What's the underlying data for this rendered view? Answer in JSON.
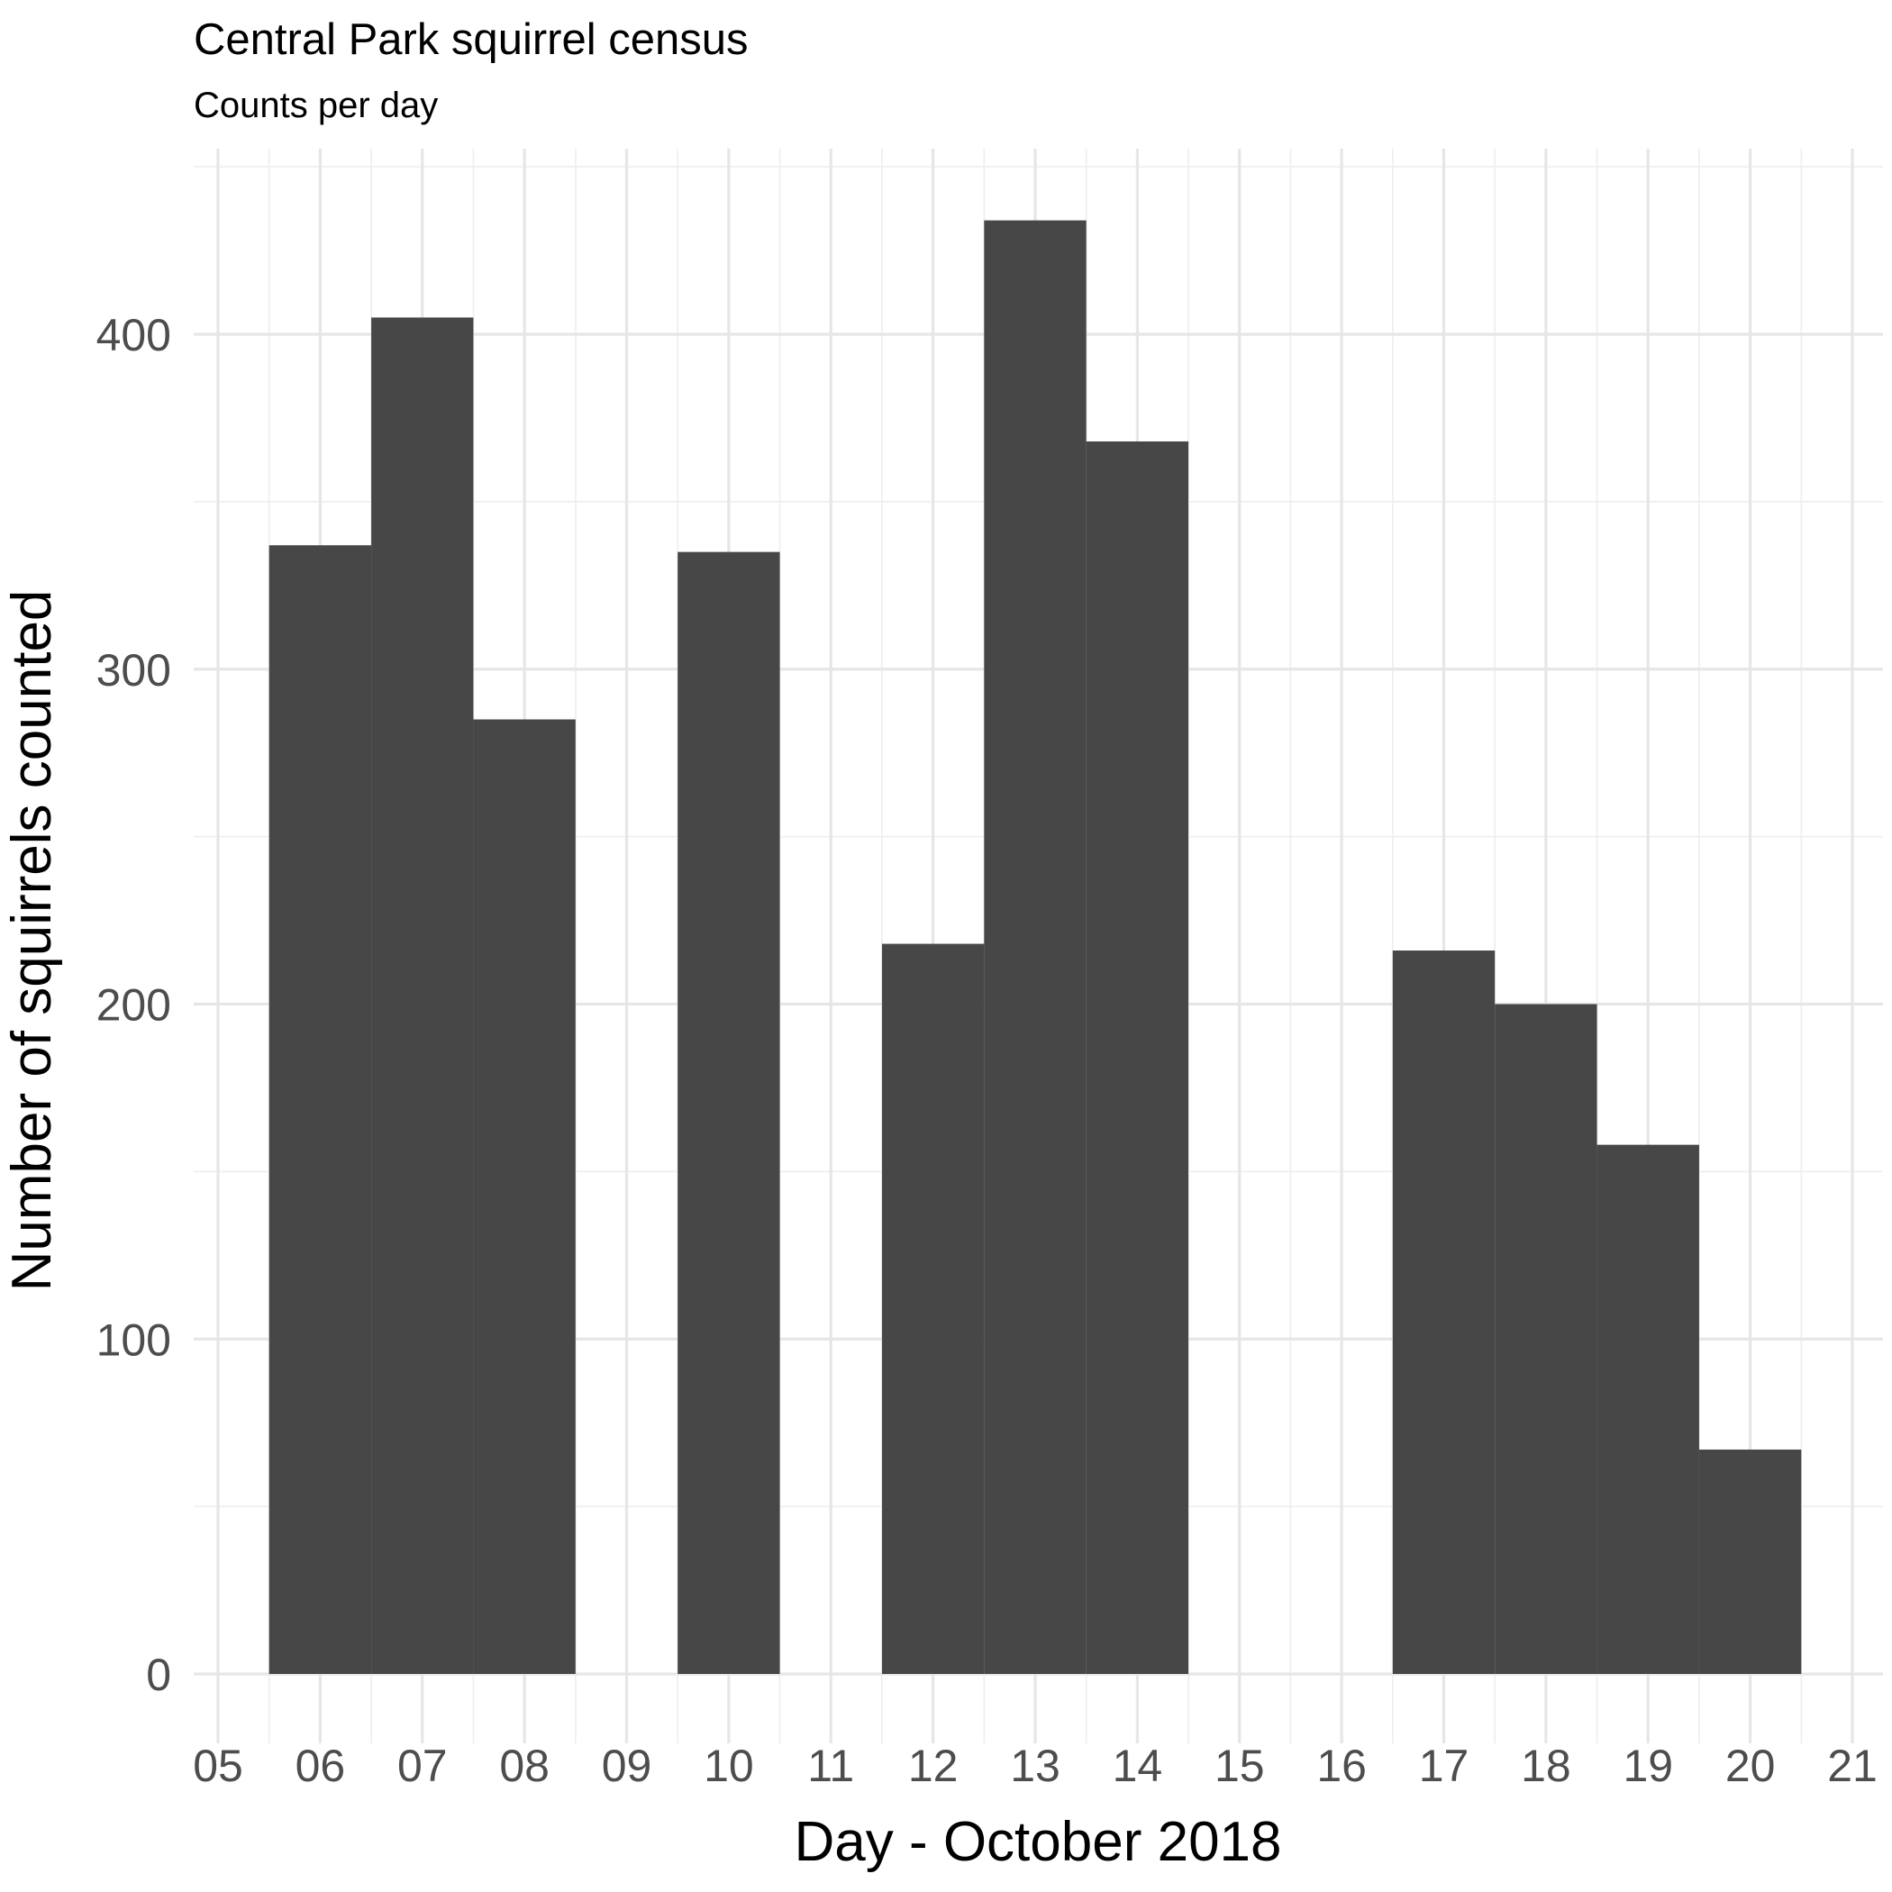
{
  "chart_data": {
    "type": "bar",
    "title": "Central Park squirrel census",
    "subtitle": "Counts per day",
    "xlabel": "Day - October 2018",
    "ylabel": "Number of squirrels counted",
    "x_tick_labels": [
      "05",
      "06",
      "07",
      "08",
      "09",
      "10",
      "11",
      "12",
      "13",
      "14",
      "15",
      "16",
      "17",
      "18",
      "19",
      "20",
      "21"
    ],
    "y_ticks": [
      0,
      100,
      200,
      300,
      400
    ],
    "xlim": [
      5,
      21
    ],
    "ylim": [
      0,
      450
    ],
    "categories": [
      "06",
      "07",
      "08",
      "10",
      "12",
      "13",
      "14",
      "17",
      "18",
      "19",
      "20"
    ],
    "days": [
      6,
      7,
      8,
      10,
      12,
      13,
      14,
      17,
      18,
      19,
      20
    ],
    "values": [
      337,
      405,
      285,
      335,
      218,
      434,
      368,
      216,
      200,
      158,
      67
    ],
    "bar_color": "#474747",
    "grid_color": "#e6e6e6",
    "grid": true,
    "legend": "none"
  }
}
